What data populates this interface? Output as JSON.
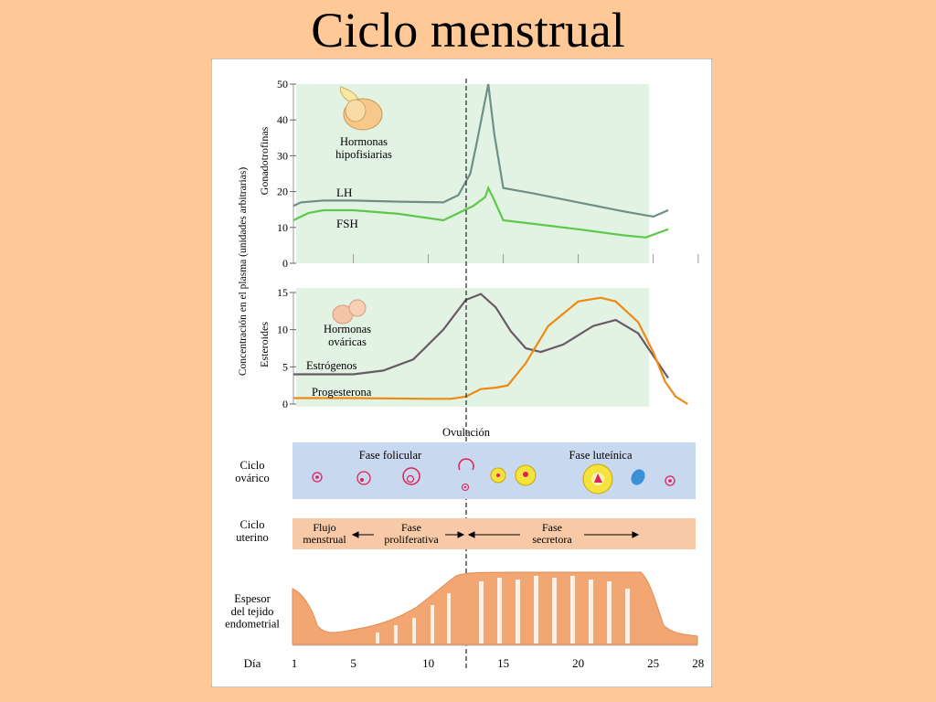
{
  "slide": {
    "title": "Ciclo menstrual"
  },
  "colors": {
    "background": "#fec996",
    "panel_green": "#e3f3e3",
    "lh": "#6e8f86",
    "fsh": "#5ec84a",
    "estrogen": "#6a5a66",
    "progesterone": "#ee8a12",
    "ovarian_band": "#c8d8ee",
    "uterine_band": "#f7c9a6",
    "endometrium": "#f2a672",
    "follicle": "#e0205a",
    "corpus_luteum": "#f4e33c",
    "albicans": "#3b8fd8"
  },
  "axis": {
    "shared_ylabel": "Concentración en el plasma (unidades arbitrarias)",
    "gonadotropins_ylabel": "Gonadotrofinas",
    "steroids_ylabel": "Esteroides"
  },
  "labels": {
    "pituitary": "Hormonas\nhipofisiarias",
    "lh": "LH",
    "fsh": "FSH",
    "ovarian_hormones": "Hormonas\nováricas",
    "estrogen": "Estrógenos",
    "progesterone": "Progesterona",
    "ovulation": "Ovulación",
    "ovarian_cycle": "Ciclo\novárico",
    "follicular_phase": "Fase folicular",
    "luteal_phase": "Fase luteínica",
    "uterine_cycle": "Ciclo\nuterino",
    "menstrual_flow": "Flujo\nmenstrual",
    "proliferative_phase": "Fase\nproliferativa",
    "secretory_phase": "Fase\nsecretora",
    "endometrium": "Espesor\ndel tejido\nendometrial",
    "day": "Día"
  },
  "chart_data": [
    {
      "type": "line",
      "x_ticks": [
        "1",
        "5",
        "10",
        "15",
        "20",
        "25",
        "28",
        "5"
      ],
      "ylim": [
        0,
        50
      ],
      "y_ticks": [
        0,
        10,
        20,
        30,
        40,
        50
      ],
      "series": [
        {
          "name": "LH",
          "x": [
            1,
            1.5,
            3,
            5,
            8,
            11,
            12,
            12.8,
            13.2,
            14,
            14.4,
            15,
            17,
            20,
            23,
            25,
            26
          ],
          "y": [
            16,
            17,
            17.5,
            17.5,
            17.2,
            17,
            19,
            25,
            33,
            50,
            36,
            21,
            19.5,
            17,
            14.5,
            13,
            14.8
          ]
        },
        {
          "name": "FSH",
          "x": [
            1,
            2,
            3,
            5,
            8,
            11,
            13,
            13.8,
            14,
            14.3,
            15,
            17,
            20,
            23,
            24.5,
            26
          ],
          "y": [
            12,
            14,
            14.8,
            14.8,
            13.8,
            12,
            16,
            18.5,
            21,
            18.5,
            12,
            11,
            9.5,
            7.8,
            7.2,
            9.5
          ]
        }
      ]
    },
    {
      "type": "line",
      "x_ticks": [
        "1",
        "5",
        "10",
        "15",
        "20",
        "25",
        "28",
        "5"
      ],
      "ylim": [
        0,
        15
      ],
      "y_ticks": [
        0,
        5,
        10,
        15
      ],
      "series": [
        {
          "name": "Estrógenos",
          "x": [
            1,
            3,
            5,
            7,
            9,
            11,
            12.5,
            13.5,
            14.5,
            15.5,
            16.5,
            17.5,
            19,
            21,
            22.5,
            24,
            25.5,
            26
          ],
          "y": [
            4,
            4,
            4,
            4.5,
            6,
            10,
            14,
            14.8,
            13,
            9.8,
            7.5,
            7,
            8,
            10.5,
            11.3,
            9.5,
            5,
            3.5
          ]
        },
        {
          "name": "Progesterona",
          "x": [
            1,
            5,
            10,
            11.5,
            12.5,
            13.5,
            14.5,
            15.3,
            16.5,
            18,
            20,
            21.5,
            22.5,
            24,
            25,
            25.8,
            26.5,
            27.3
          ],
          "y": [
            0.8,
            0.8,
            0.7,
            0.7,
            1,
            2,
            2.2,
            2.5,
            5.5,
            10.5,
            13.8,
            14.3,
            13.8,
            11,
            7,
            3,
            1,
            0
          ]
        }
      ]
    }
  ]
}
